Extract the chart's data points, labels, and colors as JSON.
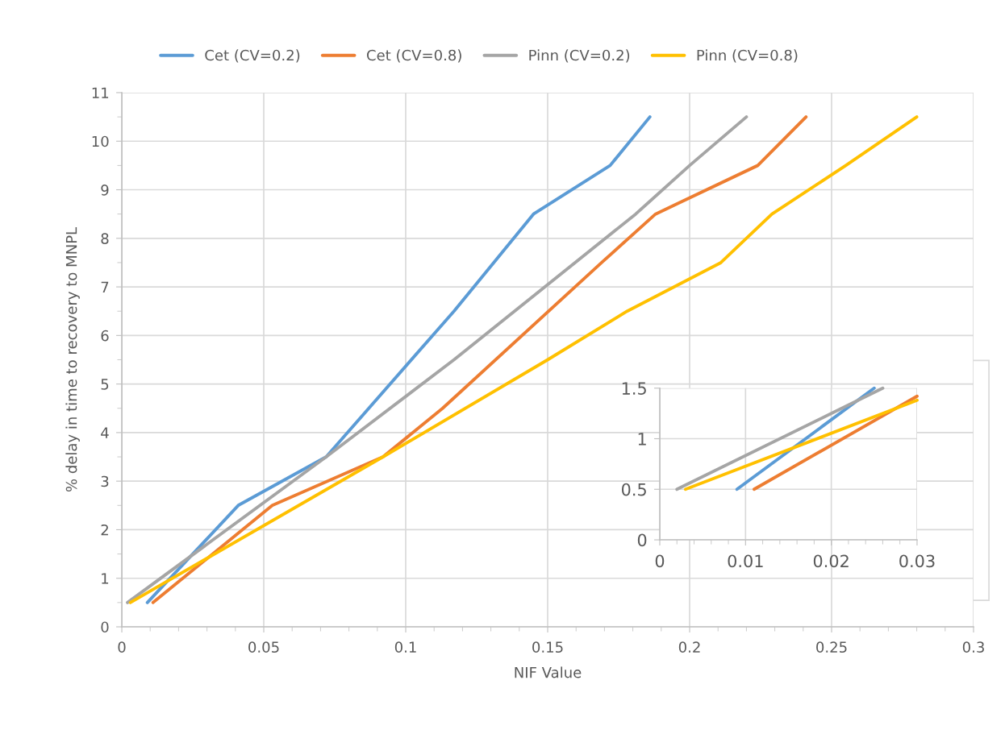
{
  "chart_data": [
    {
      "type": "line",
      "xlabel": "NIF Value",
      "ylabel": "% delay in time to recovery to MNPL",
      "xlim": [
        0,
        0.3
      ],
      "xticks": [
        0,
        0.05,
        0.1,
        0.15,
        0.2,
        0.25,
        0.3
      ],
      "ylim": [
        0,
        11
      ],
      "yticks": [
        0,
        1,
        2,
        3,
        4,
        5,
        6,
        7,
        8,
        9,
        10,
        11
      ],
      "grid": true,
      "legend": "top",
      "marker": "none",
      "line_style": "solid",
      "series": [
        {
          "name": "Cet (CV=0.2)",
          "color": "#5b9bd5",
          "x": [
            0.009,
            0.041,
            0.072,
            0.117,
            0.145,
            0.172,
            0.186
          ],
          "values": [
            0.5,
            2.5,
            3.5,
            6.5,
            8.5,
            9.5,
            10.5
          ]
        },
        {
          "name": "Cet (CV=0.8)",
          "color": "#ed7d31",
          "x": [
            0.011,
            0.053,
            0.092,
            0.113,
            0.169,
            0.188,
            0.224,
            0.241
          ],
          "values": [
            0.5,
            2.5,
            3.5,
            4.5,
            7.5,
            8.5,
            9.5,
            10.5
          ]
        },
        {
          "name": "Pinn (CV=0.2)",
          "color": "#a5a5a5",
          "x": [
            0.002,
            0.072,
            0.117,
            0.181,
            0.2,
            0.22
          ],
          "values": [
            0.5,
            3.5,
            5.5,
            8.5,
            9.5,
            10.5
          ]
        },
        {
          "name": "Pinn (CV=0.8)",
          "color": "#ffc000",
          "x": [
            0.003,
            0.092,
            0.15,
            0.178,
            0.211,
            0.229,
            0.255,
            0.28
          ],
          "values": [
            0.5,
            3.5,
            5.5,
            6.5,
            7.5,
            8.5,
            9.5,
            10.5
          ]
        }
      ]
    },
    {
      "type": "line",
      "xlim": [
        0,
        0.03
      ],
      "xticks": [
        0,
        0.01,
        0.02,
        0.03
      ],
      "ylim": [
        0,
        1.5
      ],
      "yticks": [
        0,
        0.5,
        1,
        1.5
      ],
      "grid": true,
      "marker": "none",
      "line_style": "solid",
      "series": [
        {
          "color": "#5b9bd5",
          "x": [
            0.009,
            0.025
          ],
          "values": [
            0.5,
            1.5
          ]
        },
        {
          "color": "#ed7d31",
          "x": [
            0.011,
            0.03
          ],
          "values": [
            0.5,
            1.42
          ]
        },
        {
          "color": "#a5a5a5",
          "x": [
            0.002,
            0.026
          ],
          "values": [
            0.5,
            1.5
          ]
        },
        {
          "color": "#ffc000",
          "x": [
            0.003,
            0.03
          ],
          "values": [
            0.5,
            1.38
          ]
        }
      ]
    }
  ]
}
